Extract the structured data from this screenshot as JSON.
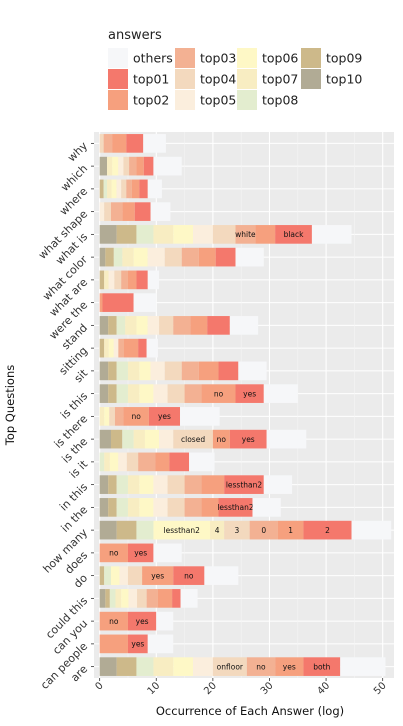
{
  "legend": {
    "title": "answers",
    "items": [
      {
        "key": "others",
        "label": "others",
        "color": "#F6F7F9"
      },
      {
        "key": "top01",
        "label": "top01",
        "color": "#F4786C"
      },
      {
        "key": "top02",
        "label": "top02",
        "color": "#F6A07E"
      },
      {
        "key": "top03",
        "label": "top03",
        "color": "#F3B193"
      },
      {
        "key": "top04",
        "label": "top04",
        "color": "#F3D9BE"
      },
      {
        "key": "top05",
        "label": "top05",
        "color": "#FBEEDD"
      },
      {
        "key": "top06",
        "label": "top06",
        "color": "#FEF8C6"
      },
      {
        "key": "top07",
        "label": "top07",
        "color": "#F8EDC2"
      },
      {
        "key": "top08",
        "label": "top08",
        "color": "#E3EDCF"
      },
      {
        "key": "top09",
        "label": "top09",
        "color": "#CDB98A"
      },
      {
        "key": "top10",
        "label": "top10",
        "color": "#B1AB95"
      }
    ]
  },
  "chart_data": {
    "type": "bar",
    "orientation": "horizontal",
    "stacked": true,
    "xlabel": "Occurrence of Each Answer (log)",
    "ylabel": "Top Questions",
    "xlim": [
      -1,
      52
    ],
    "xticks": [
      0,
      10,
      20,
      30,
      40,
      50
    ],
    "grid": true,
    "legend_position": "top",
    "segment_order": [
      "top10",
      "top09",
      "top08",
      "top07",
      "top06",
      "top05",
      "top04",
      "top03",
      "top02",
      "top01",
      "others"
    ],
    "rows": [
      {
        "label": "why",
        "segments": [
          {
            "key": "top04",
            "value": 0.7
          },
          {
            "key": "top03",
            "value": 1.5
          },
          {
            "key": "top02",
            "value": 2.5
          },
          {
            "key": "top01",
            "value": 3
          },
          {
            "key": "others",
            "value": 4
          }
        ]
      },
      {
        "label": "which",
        "segments": [
          {
            "key": "top10",
            "value": 1.3
          },
          {
            "key": "top07",
            "value": 0.9
          },
          {
            "key": "top06",
            "value": 1.1
          },
          {
            "key": "top05",
            "value": 0.9
          },
          {
            "key": "top04",
            "value": 1
          },
          {
            "key": "top03",
            "value": 1.3
          },
          {
            "key": "top02",
            "value": 1.3
          },
          {
            "key": "top01",
            "value": 1.7
          },
          {
            "key": "others",
            "value": 5
          }
        ]
      },
      {
        "label": "where",
        "segments": [
          {
            "key": "top09",
            "value": 0.7
          },
          {
            "key": "top08",
            "value": 0.6
          },
          {
            "key": "top07",
            "value": 0.8
          },
          {
            "key": "top06",
            "value": 0.9
          },
          {
            "key": "top05",
            "value": 0.8
          },
          {
            "key": "top04",
            "value": 0.9
          },
          {
            "key": "top03",
            "value": 1
          },
          {
            "key": "top02",
            "value": 1.3
          },
          {
            "key": "top01",
            "value": 1.5
          },
          {
            "key": "others",
            "value": 2.5
          }
        ]
      },
      {
        "label": "what shape",
        "segments": [
          {
            "key": "top05",
            "value": 0.8
          },
          {
            "key": "top04",
            "value": 1.2
          },
          {
            "key": "top03",
            "value": 2
          },
          {
            "key": "top02",
            "value": 2.2
          },
          {
            "key": "top01",
            "value": 2.8
          },
          {
            "key": "others",
            "value": 3.5
          }
        ]
      },
      {
        "label": "what is",
        "segments": [
          {
            "key": "top10",
            "value": 3
          },
          {
            "key": "top09",
            "value": 3.5
          },
          {
            "key": "top08",
            "value": 3
          },
          {
            "key": "top07",
            "value": 3.5
          },
          {
            "key": "top06",
            "value": 3.5
          },
          {
            "key": "top05",
            "value": 3.5
          },
          {
            "key": "top04",
            "value": 4
          },
          {
            "key": "top03",
            "value": 3.5,
            "label": "white"
          },
          {
            "key": "top02",
            "value": 3.5
          },
          {
            "key": "top01",
            "value": 6.5,
            "label": "black"
          },
          {
            "key": "others",
            "value": 7
          }
        ]
      },
      {
        "label": "what color",
        "segments": [
          {
            "key": "top10",
            "value": 1
          },
          {
            "key": "top09",
            "value": 1.5
          },
          {
            "key": "top08",
            "value": 1.5
          },
          {
            "key": "top07",
            "value": 2
          },
          {
            "key": "top06",
            "value": 2.5
          },
          {
            "key": "top05",
            "value": 3
          },
          {
            "key": "top04",
            "value": 3
          },
          {
            "key": "top03",
            "value": 3
          },
          {
            "key": "top02",
            "value": 3
          },
          {
            "key": "top01",
            "value": 3.5
          },
          {
            "key": "others",
            "value": 5
          }
        ]
      },
      {
        "label": "what are",
        "segments": [
          {
            "key": "top09",
            "value": 0.8
          },
          {
            "key": "top07",
            "value": 0.8
          },
          {
            "key": "top05",
            "value": 1
          },
          {
            "key": "top04",
            "value": 1.2
          },
          {
            "key": "top03",
            "value": 1.2
          },
          {
            "key": "top02",
            "value": 1.5
          },
          {
            "key": "top01",
            "value": 2
          },
          {
            "key": "others",
            "value": 2
          }
        ]
      },
      {
        "label": "were the",
        "segments": [
          {
            "key": "top02",
            "value": 0.5
          },
          {
            "key": "top01",
            "value": 5.5
          },
          {
            "key": "others",
            "value": 4
          }
        ]
      },
      {
        "label": "stand",
        "segments": [
          {
            "key": "top10",
            "value": 1.5
          },
          {
            "key": "top09",
            "value": 1.5
          },
          {
            "key": "top08",
            "value": 1.5
          },
          {
            "key": "top07",
            "value": 2
          },
          {
            "key": "top06",
            "value": 2
          },
          {
            "key": "top05",
            "value": 2
          },
          {
            "key": "top04",
            "value": 2.5
          },
          {
            "key": "top03",
            "value": 3
          },
          {
            "key": "top02",
            "value": 3
          },
          {
            "key": "top01",
            "value": 4
          },
          {
            "key": "others",
            "value": 5
          }
        ]
      },
      {
        "label": "sitting",
        "segments": [
          {
            "key": "top09",
            "value": 0.8
          },
          {
            "key": "top07",
            "value": 0.8
          },
          {
            "key": "top06",
            "value": 0.9
          },
          {
            "key": "top05",
            "value": 0.8
          },
          {
            "key": "top03",
            "value": 1
          },
          {
            "key": "top02",
            "value": 2.5
          },
          {
            "key": "top01",
            "value": 1.5
          },
          {
            "key": "others",
            "value": 2
          }
        ]
      },
      {
        "label": "sit",
        "segments": [
          {
            "key": "top10",
            "value": 1.5
          },
          {
            "key": "top09",
            "value": 1.5
          },
          {
            "key": "top08",
            "value": 2
          },
          {
            "key": "top07",
            "value": 2
          },
          {
            "key": "top06",
            "value": 2
          },
          {
            "key": "top05",
            "value": 2.5
          },
          {
            "key": "top04",
            "value": 3
          },
          {
            "key": "top03",
            "value": 3
          },
          {
            "key": "top02",
            "value": 3.5
          },
          {
            "key": "top01",
            "value": 3.5
          },
          {
            "key": "others",
            "value": 5
          }
        ]
      },
      {
        "label": "is this",
        "segments": [
          {
            "key": "top10",
            "value": 1.5
          },
          {
            "key": "top09",
            "value": 1.5
          },
          {
            "key": "top08",
            "value": 2
          },
          {
            "key": "top07",
            "value": 2
          },
          {
            "key": "top06",
            "value": 2.5
          },
          {
            "key": "top05",
            "value": 2.5
          },
          {
            "key": "top04",
            "value": 3
          },
          {
            "key": "top03",
            "value": 3
          },
          {
            "key": "top02",
            "value": 6,
            "label": "no"
          },
          {
            "key": "top01",
            "value": 5,
            "label": "yes"
          },
          {
            "key": "others",
            "value": 6
          }
        ]
      },
      {
        "label": "is there",
        "segments": [
          {
            "key": "top07",
            "value": 0.8
          },
          {
            "key": "top06",
            "value": 0.9
          },
          {
            "key": "top04",
            "value": 1
          },
          {
            "key": "top03",
            "value": 1.5
          },
          {
            "key": "top02",
            "value": 4.5,
            "label": "no"
          },
          {
            "key": "top01",
            "value": 5.5,
            "label": "yes"
          },
          {
            "key": "others",
            "value": 7
          }
        ]
      },
      {
        "label": "is the",
        "segments": [
          {
            "key": "top10",
            "value": 2
          },
          {
            "key": "top09",
            "value": 2
          },
          {
            "key": "top08",
            "value": 2
          },
          {
            "key": "top07",
            "value": 2
          },
          {
            "key": "top06",
            "value": 2.5
          },
          {
            "key": "top05",
            "value": 2.5
          },
          {
            "key": "top04",
            "value": 7,
            "label": "closed"
          },
          {
            "key": "top02",
            "value": 3,
            "label": "no"
          },
          {
            "key": "top01",
            "value": 6.5,
            "label": "yes"
          },
          {
            "key": "others",
            "value": 7
          }
        ]
      },
      {
        "label": "is it",
        "segments": [
          {
            "key": "top08",
            "value": 0.8
          },
          {
            "key": "top07",
            "value": 1
          },
          {
            "key": "top06",
            "value": 1.5
          },
          {
            "key": "top05",
            "value": 1.5
          },
          {
            "key": "top04",
            "value": 2
          },
          {
            "key": "top03",
            "value": 3
          },
          {
            "key": "top02",
            "value": 2.5
          },
          {
            "key": "top01",
            "value": 3.5
          },
          {
            "key": "others",
            "value": 4.5
          }
        ]
      },
      {
        "label": "in this",
        "segments": [
          {
            "key": "top10",
            "value": 1.5
          },
          {
            "key": "top09",
            "value": 1.5
          },
          {
            "key": "top08",
            "value": 2
          },
          {
            "key": "top07",
            "value": 2
          },
          {
            "key": "top06",
            "value": 2.5
          },
          {
            "key": "top05",
            "value": 2.5
          },
          {
            "key": "top04",
            "value": 3
          },
          {
            "key": "top03",
            "value": 3
          },
          {
            "key": "top02",
            "value": 4
          },
          {
            "key": "top01",
            "value": 7,
            "label": "lessthan2"
          },
          {
            "key": "others",
            "value": 5
          }
        ]
      },
      {
        "label": "in the",
        "segments": [
          {
            "key": "top10",
            "value": 1.5
          },
          {
            "key": "top09",
            "value": 1.5
          },
          {
            "key": "top08",
            "value": 2
          },
          {
            "key": "top07",
            "value": 2
          },
          {
            "key": "top06",
            "value": 2.5
          },
          {
            "key": "top05",
            "value": 2.5
          },
          {
            "key": "top04",
            "value": 3
          },
          {
            "key": "top03",
            "value": 3
          },
          {
            "key": "top02",
            "value": 3
          },
          {
            "key": "top01",
            "value": 6,
            "label": "lessthan2"
          },
          {
            "key": "others",
            "value": 5
          }
        ]
      },
      {
        "label": "how many",
        "segments": [
          {
            "key": "top10",
            "value": 3
          },
          {
            "key": "top09",
            "value": 3.5
          },
          {
            "key": "top08",
            "value": 3
          },
          {
            "key": "top06",
            "value": 10,
            "label": "lessthan2"
          },
          {
            "key": "top07",
            "value": 2.5,
            "label": "4"
          },
          {
            "key": "top04",
            "value": 4.5,
            "label": "3"
          },
          {
            "key": "top03",
            "value": 5,
            "label": "0"
          },
          {
            "key": "top02",
            "value": 4.5,
            "label": "1"
          },
          {
            "key": "top01",
            "value": 8.5,
            "label": "2"
          },
          {
            "key": "others",
            "value": 7
          }
        ]
      },
      {
        "label": "does",
        "segments": [
          {
            "key": "top02",
            "value": 5,
            "label": "no"
          },
          {
            "key": "top01",
            "value": 4.5,
            "label": "yes"
          },
          {
            "key": "others",
            "value": 5
          }
        ]
      },
      {
        "label": "do",
        "segments": [
          {
            "key": "top09",
            "value": 0.8
          },
          {
            "key": "top08",
            "value": 1.2
          },
          {
            "key": "top06",
            "value": 1.5
          },
          {
            "key": "top05",
            "value": 1.5
          },
          {
            "key": "top04",
            "value": 2.5
          },
          {
            "key": "top02",
            "value": 5.5,
            "label": "yes"
          },
          {
            "key": "top01",
            "value": 5.5,
            "label": "no"
          },
          {
            "key": "others",
            "value": 6
          }
        ]
      },
      {
        "label": "could this",
        "segments": [
          {
            "key": "top10",
            "value": 1
          },
          {
            "key": "top09",
            "value": 0.8
          },
          {
            "key": "top08",
            "value": 1
          },
          {
            "key": "top07",
            "value": 1
          },
          {
            "key": "top06",
            "value": 1.3
          },
          {
            "key": "top05",
            "value": 1.5
          },
          {
            "key": "top04",
            "value": 1.7
          },
          {
            "key": "top03",
            "value": 2
          },
          {
            "key": "top02",
            "value": 2.5
          },
          {
            "key": "top01",
            "value": 1.5
          },
          {
            "key": "others",
            "value": 3
          }
        ]
      },
      {
        "label": "can you",
        "segments": [
          {
            "key": "top02",
            "value": 5,
            "label": "no"
          },
          {
            "key": "top01",
            "value": 5,
            "label": "yes"
          },
          {
            "key": "others",
            "value": 3
          }
        ]
      },
      {
        "label": "can people",
        "segments": [
          {
            "key": "top02",
            "value": 5
          },
          {
            "key": "top01",
            "value": 3.5,
            "label": "yes"
          },
          {
            "key": "others",
            "value": 4.5
          }
        ]
      },
      {
        "label": "are",
        "segments": [
          {
            "key": "top10",
            "value": 3
          },
          {
            "key": "top09",
            "value": 3.5
          },
          {
            "key": "top08",
            "value": 3
          },
          {
            "key": "top07",
            "value": 3.5
          },
          {
            "key": "top06",
            "value": 3.5
          },
          {
            "key": "top05",
            "value": 3.5
          },
          {
            "key": "top04",
            "value": 6,
            "label": "onfloor"
          },
          {
            "key": "top03",
            "value": 5,
            "label": "no"
          },
          {
            "key": "top02",
            "value": 5,
            "label": "yes"
          },
          {
            "key": "top01",
            "value": 6.5,
            "label": "both"
          },
          {
            "key": "others",
            "value": 8
          }
        ]
      }
    ]
  }
}
